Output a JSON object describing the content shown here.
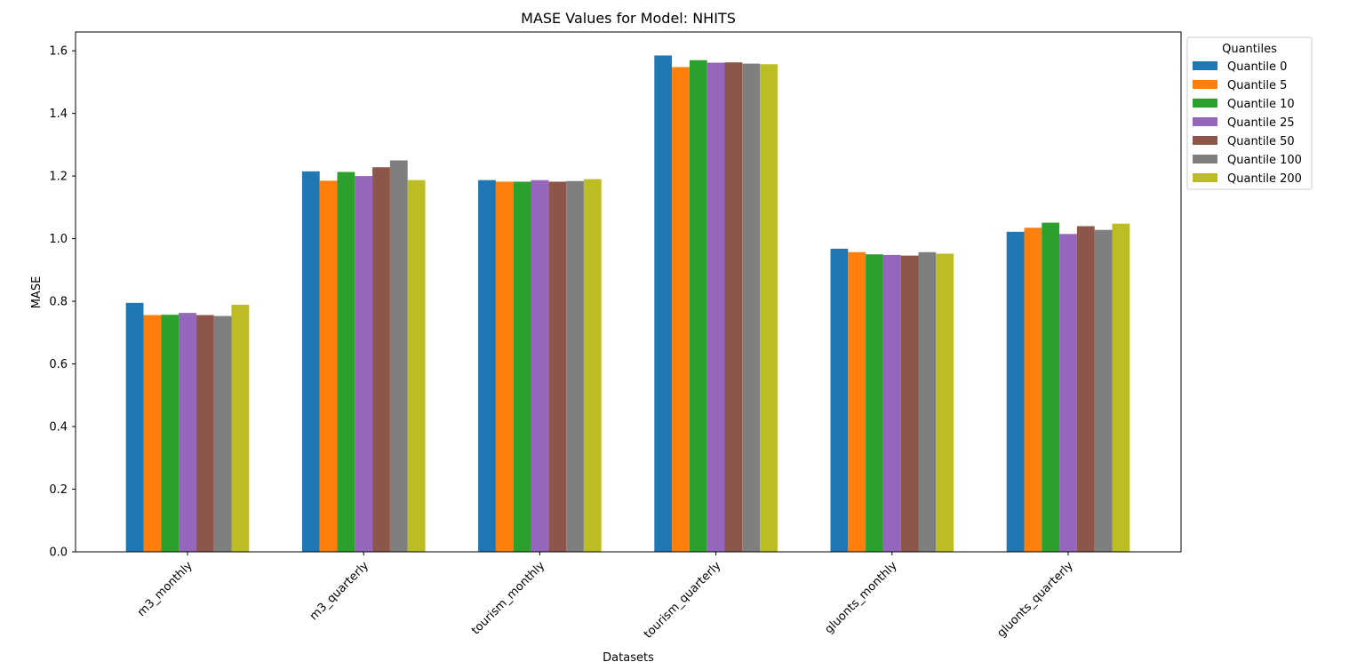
{
  "chart_data": {
    "type": "bar",
    "title": "MASE Values for Model: NHITS",
    "xlabel": "Datasets",
    "ylabel": "MASE",
    "ylim": [
      0,
      1.66
    ],
    "yticks": [
      "0.0",
      "0.2",
      "0.4",
      "0.6",
      "0.8",
      "1.0",
      "1.2",
      "1.4",
      "1.6"
    ],
    "grid": false,
    "legend": {
      "title": "Quantiles",
      "placement": "outside-top-right"
    },
    "categories": [
      "m3_monthly",
      "m3_quarterly",
      "tourism_monthly",
      "tourism_quarterly",
      "gluonts_monthly",
      "gluonts_quarterly"
    ],
    "series": [
      {
        "name": "Quantile 0",
        "color": "#1f77b4",
        "values": [
          0.795,
          1.215,
          1.187,
          1.585,
          0.968,
          1.022
        ]
      },
      {
        "name": "Quantile 5",
        "color": "#ff7f0e",
        "values": [
          0.756,
          1.185,
          1.182,
          1.548,
          0.957,
          1.035
        ]
      },
      {
        "name": "Quantile 10",
        "color": "#2ca02c",
        "values": [
          0.757,
          1.213,
          1.182,
          1.57,
          0.95,
          1.051
        ]
      },
      {
        "name": "Quantile 25",
        "color": "#9467bd",
        "values": [
          0.763,
          1.2,
          1.187,
          1.562,
          0.948,
          1.015
        ]
      },
      {
        "name": "Quantile 50",
        "color": "#8c564b",
        "values": [
          0.756,
          1.228,
          1.182,
          1.563,
          0.946,
          1.04
        ]
      },
      {
        "name": "Quantile 100",
        "color": "#7f7f7f",
        "values": [
          0.753,
          1.25,
          1.184,
          1.559,
          0.957,
          1.028
        ]
      },
      {
        "name": "Quantile 200",
        "color": "#bcbd22",
        "values": [
          0.789,
          1.187,
          1.19,
          1.557,
          0.952,
          1.048
        ]
      }
    ]
  }
}
